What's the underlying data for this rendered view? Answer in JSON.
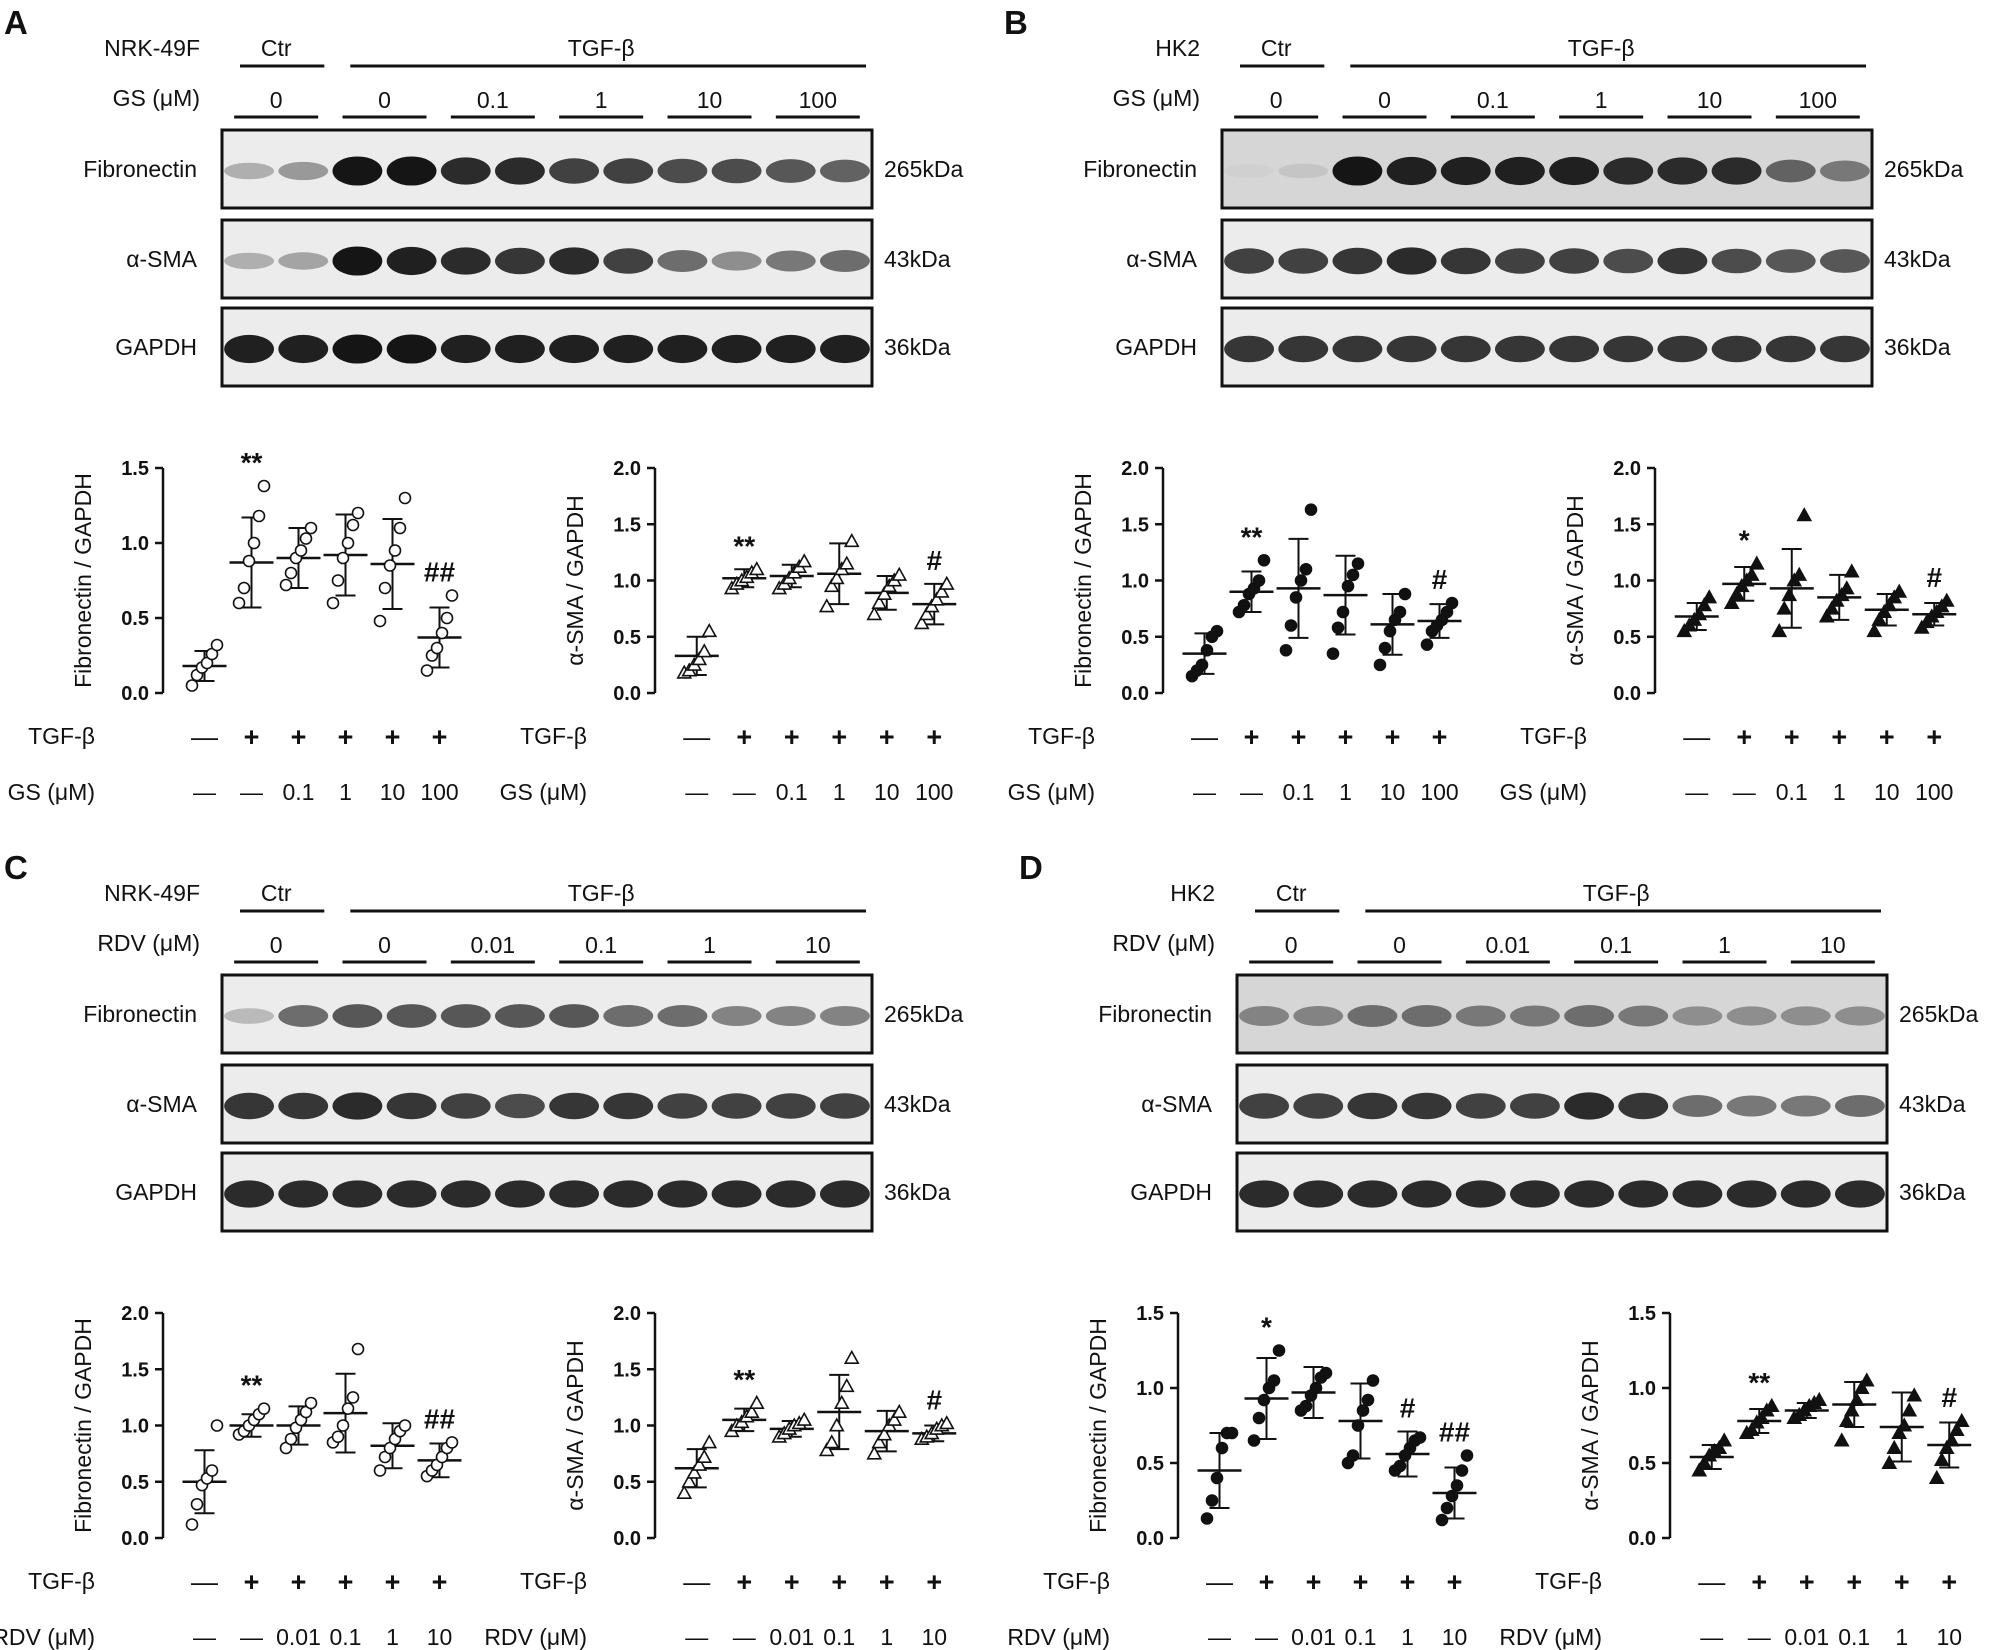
{
  "panels": [
    {
      "letter": "A",
      "cell": "NRK-49F",
      "drug": "GS (μM)",
      "ctr_label": "Ctr",
      "tgf_label": "TGF-β",
      "lanes": [
        "0",
        "0",
        "0.1",
        "1",
        "10",
        "100"
      ],
      "blots": [
        {
          "name": "Fibronectin",
          "kda": "265kDa"
        },
        {
          "name": "α-SMA",
          "kda": "43kDa"
        },
        {
          "name": "GAPDH",
          "kda": "36kDa"
        }
      ],
      "tgf_row": [
        "—",
        "+",
        "+",
        "+",
        "+",
        "+"
      ],
      "dose_row": [
        "—",
        "—",
        "0.1",
        "1",
        "10",
        "100"
      ],
      "markers": "open-circle|open-triangle"
    },
    {
      "letter": "B",
      "cell": "HK2",
      "drug": "GS (μM)",
      "ctr_label": "Ctr",
      "tgf_label": "TGF-β",
      "lanes": [
        "0",
        "0",
        "0.1",
        "1",
        "10",
        "100"
      ],
      "blots": [
        {
          "name": "Fibronectin",
          "kda": "265kDa"
        },
        {
          "name": "α-SMA",
          "kda": "43kDa"
        },
        {
          "name": "GAPDH",
          "kda": "36kDa"
        }
      ],
      "tgf_row": [
        "—",
        "+",
        "+",
        "+",
        "+",
        "+"
      ],
      "dose_row": [
        "—",
        "—",
        "0.1",
        "1",
        "10",
        "100"
      ],
      "markers": "filled-circle|filled-triangle"
    },
    {
      "letter": "C",
      "cell": "NRK-49F",
      "drug": "RDV (μM)",
      "ctr_label": "Ctr",
      "tgf_label": "TGF-β",
      "lanes": [
        "0",
        "0",
        "0.01",
        "0.1",
        "1",
        "10"
      ],
      "blots": [
        {
          "name": "Fibronectin",
          "kda": "265kDa"
        },
        {
          "name": "α-SMA",
          "kda": "43kDa"
        },
        {
          "name": "GAPDH",
          "kda": "36kDa"
        }
      ],
      "tgf_row": [
        "—",
        "+",
        "+",
        "+",
        "+",
        "+"
      ],
      "dose_row": [
        "—",
        "—",
        "0.01",
        "0.1",
        "1",
        "10"
      ],
      "markers": "open-circle|open-triangle"
    },
    {
      "letter": "D",
      "cell": "HK2",
      "drug": "RDV (μM)",
      "ctr_label": "Ctr",
      "tgf_label": "TGF-β",
      "lanes": [
        "0",
        "0",
        "0.01",
        "0.1",
        "1",
        "10"
      ],
      "blots": [
        {
          "name": "Fibronectin",
          "kda": "265kDa"
        },
        {
          "name": "α-SMA",
          "kda": "43kDa"
        },
        {
          "name": "GAPDH",
          "kda": "36kDa"
        }
      ],
      "tgf_row": [
        "—",
        "+",
        "+",
        "+",
        "+",
        "+"
      ],
      "dose_row": [
        "—",
        "—",
        "0.01",
        "0.1",
        "1",
        "10"
      ],
      "markers": "filled-circle|filled-triangle"
    }
  ],
  "band_intensity": [
    {
      "Fibronectin": [
        0.25,
        0.35,
        0.95,
        0.95,
        0.85,
        0.85,
        0.75,
        0.75,
        0.7,
        0.7,
        0.65,
        0.6
      ],
      "α-SMA": [
        0.25,
        0.3,
        0.95,
        0.9,
        0.85,
        0.8,
        0.85,
        0.75,
        0.55,
        0.4,
        0.5,
        0.55
      ],
      "GAPDH": [
        0.9,
        0.9,
        0.95,
        0.95,
        0.9,
        0.9,
        0.9,
        0.9,
        0.9,
        0.9,
        0.9,
        0.9
      ]
    },
    {
      "Fibronectin": [
        0.1,
        0.15,
        0.95,
        0.9,
        0.9,
        0.9,
        0.9,
        0.85,
        0.85,
        0.85,
        0.6,
        0.5
      ],
      "α-SMA": [
        0.75,
        0.75,
        0.8,
        0.85,
        0.8,
        0.75,
        0.75,
        0.7,
        0.8,
        0.7,
        0.65,
        0.65
      ],
      "GAPDH": [
        0.8,
        0.8,
        0.8,
        0.8,
        0.8,
        0.8,
        0.8,
        0.8,
        0.8,
        0.8,
        0.8,
        0.8
      ]
    },
    {
      "Fibronectin": [
        0.2,
        0.55,
        0.65,
        0.65,
        0.65,
        0.65,
        0.65,
        0.55,
        0.55,
        0.45,
        0.45,
        0.45
      ],
      "α-SMA": [
        0.8,
        0.8,
        0.85,
        0.8,
        0.75,
        0.7,
        0.8,
        0.8,
        0.75,
        0.75,
        0.75,
        0.75
      ],
      "GAPDH": [
        0.85,
        0.85,
        0.85,
        0.85,
        0.85,
        0.85,
        0.85,
        0.85,
        0.85,
        0.85,
        0.85,
        0.85
      ]
    },
    {
      "Fibronectin": [
        0.45,
        0.45,
        0.55,
        0.55,
        0.5,
        0.5,
        0.55,
        0.5,
        0.4,
        0.4,
        0.4,
        0.4
      ],
      "α-SMA": [
        0.75,
        0.75,
        0.8,
        0.8,
        0.75,
        0.75,
        0.85,
        0.8,
        0.55,
        0.5,
        0.5,
        0.55
      ],
      "GAPDH": [
        0.85,
        0.85,
        0.85,
        0.85,
        0.85,
        0.85,
        0.85,
        0.85,
        0.85,
        0.85,
        0.85,
        0.85
      ]
    }
  ],
  "chart_data": [
    {
      "type": "scatter",
      "panel": "A",
      "ylabel": "Fibronectin / GAPDH",
      "ylim": [
        0,
        1.5
      ],
      "yticks": [
        0.0,
        0.5,
        1.0,
        1.5
      ],
      "means": [
        0.18,
        0.87,
        0.9,
        0.92,
        0.86,
        0.37
      ],
      "sd": [
        0.1,
        0.3,
        0.2,
        0.27,
        0.3,
        0.2
      ],
      "points": [
        [
          0.05,
          0.12,
          0.17,
          0.2,
          0.26,
          0.32
        ],
        [
          0.6,
          0.7,
          0.88,
          1.0,
          1.18,
          1.38
        ],
        [
          0.72,
          0.8,
          0.9,
          0.95,
          1.03,
          1.1
        ],
        [
          0.6,
          0.75,
          0.9,
          1.0,
          1.12,
          1.2
        ],
        [
          0.48,
          0.7,
          0.85,
          0.95,
          1.1,
          1.3
        ],
        [
          0.15,
          0.25,
          0.3,
          0.4,
          0.5,
          0.65
        ]
      ],
      "annotations": [
        "",
        "**",
        "",
        "",
        "",
        "##"
      ]
    },
    {
      "type": "scatter",
      "panel": "A",
      "ylabel": "α-SMA / GAPDH",
      "ylim": [
        0,
        2.0
      ],
      "yticks": [
        0.0,
        0.5,
        1.0,
        1.5,
        2.0
      ],
      "means": [
        0.33,
        1.02,
        1.04,
        1.06,
        0.89,
        0.79
      ],
      "sd": [
        0.17,
        0.08,
        0.1,
        0.27,
        0.15,
        0.18
      ],
      "points": [
        [
          0.18,
          0.2,
          0.25,
          0.3,
          0.37,
          0.55
        ],
        [
          0.93,
          0.97,
          1.0,
          1.03,
          1.07,
          1.1
        ],
        [
          0.93,
          0.97,
          1.02,
          1.07,
          1.12,
          1.17
        ],
        [
          0.77,
          0.95,
          1.02,
          1.1,
          1.15,
          1.35
        ],
        [
          0.7,
          0.8,
          0.88,
          0.95,
          1.0,
          1.05
        ],
        [
          0.62,
          0.7,
          0.77,
          0.83,
          0.9,
          0.97
        ]
      ],
      "annotations": [
        "",
        "**",
        "",
        "",
        "",
        "#"
      ]
    },
    {
      "type": "scatter",
      "panel": "B",
      "ylabel": "Fibronectin / GAPDH",
      "ylim": [
        0,
        2.0
      ],
      "yticks": [
        0.0,
        0.5,
        1.0,
        1.5,
        2.0
      ],
      "means": [
        0.35,
        0.9,
        0.93,
        0.87,
        0.61,
        0.64
      ],
      "sd": [
        0.18,
        0.18,
        0.44,
        0.35,
        0.27,
        0.15
      ],
      "points": [
        [
          0.15,
          0.2,
          0.25,
          0.38,
          0.5,
          0.55
        ],
        [
          0.72,
          0.78,
          0.88,
          0.93,
          1.0,
          1.18
        ],
        [
          0.38,
          0.6,
          0.85,
          1.0,
          1.1,
          1.63
        ],
        [
          0.35,
          0.58,
          0.72,
          0.95,
          1.05,
          1.15
        ],
        [
          0.25,
          0.4,
          0.55,
          0.65,
          0.72,
          0.88
        ],
        [
          0.43,
          0.55,
          0.6,
          0.65,
          0.72,
          0.8
        ]
      ],
      "annotations": [
        "",
        "**",
        "",
        "",
        "",
        "#"
      ]
    },
    {
      "type": "scatter",
      "panel": "B",
      "ylabel": "α-SMA / GAPDH",
      "ylim": [
        0,
        2.0
      ],
      "yticks": [
        0.0,
        0.5,
        1.0,
        1.5,
        2.0
      ],
      "means": [
        0.68,
        0.97,
        0.93,
        0.85,
        0.74,
        0.7
      ],
      "sd": [
        0.12,
        0.15,
        0.35,
        0.2,
        0.14,
        0.1
      ],
      "points": [
        [
          0.55,
          0.6,
          0.65,
          0.7,
          0.78,
          0.85
        ],
        [
          0.8,
          0.88,
          0.95,
          1.0,
          1.05,
          1.15
        ],
        [
          0.55,
          0.75,
          0.87,
          1.0,
          1.05,
          1.58
        ],
        [
          0.68,
          0.75,
          0.82,
          0.87,
          0.93,
          1.08
        ],
        [
          0.55,
          0.65,
          0.72,
          0.78,
          0.85,
          0.9
        ],
        [
          0.58,
          0.63,
          0.68,
          0.72,
          0.77,
          0.82
        ]
      ],
      "annotations": [
        "",
        "*",
        "",
        "",
        "",
        "#"
      ]
    },
    {
      "type": "scatter",
      "panel": "C",
      "ylabel": "Fibronectin / GAPDH",
      "ylim": [
        0,
        2.0
      ],
      "yticks": [
        0.0,
        0.5,
        1.0,
        1.5,
        2.0
      ],
      "means": [
        0.5,
        1.0,
        1.0,
        1.11,
        0.82,
        0.69
      ],
      "sd": [
        0.28,
        0.1,
        0.17,
        0.35,
        0.2,
        0.15
      ],
      "points": [
        [
          0.12,
          0.3,
          0.47,
          0.53,
          0.6,
          1.0
        ],
        [
          0.92,
          0.95,
          1.0,
          1.05,
          1.1,
          1.15
        ],
        [
          0.8,
          0.88,
          0.98,
          1.05,
          1.12,
          1.2
        ],
        [
          0.85,
          0.9,
          1.0,
          1.15,
          1.25,
          1.68
        ],
        [
          0.6,
          0.72,
          0.8,
          0.88,
          0.95,
          1.0
        ],
        [
          0.55,
          0.6,
          0.65,
          0.72,
          0.8,
          0.85
        ]
      ],
      "annotations": [
        "",
        "**",
        "",
        "",
        "",
        "##"
      ]
    },
    {
      "type": "scatter",
      "panel": "C",
      "ylabel": "α-SMA / GAPDH",
      "ylim": [
        0,
        2.0
      ],
      "yticks": [
        0.0,
        0.5,
        1.0,
        1.5,
        2.0
      ],
      "means": [
        0.62,
        1.05,
        0.97,
        1.12,
        0.95,
        0.93
      ],
      "sd": [
        0.17,
        0.1,
        0.07,
        0.33,
        0.18,
        0.07
      ],
      "points": [
        [
          0.4,
          0.5,
          0.58,
          0.65,
          0.72,
          0.85
        ],
        [
          0.95,
          1.0,
          1.03,
          1.08,
          1.12,
          1.2
        ],
        [
          0.9,
          0.93,
          0.97,
          1.0,
          1.02,
          1.05
        ],
        [
          0.78,
          0.85,
          1.0,
          1.2,
          1.35,
          1.6
        ],
        [
          0.75,
          0.85,
          0.92,
          1.0,
          1.05,
          1.12
        ],
        [
          0.88,
          0.9,
          0.93,
          0.97,
          1.0,
          1.02
        ]
      ],
      "annotations": [
        "",
        "**",
        "",
        "",
        "",
        "#"
      ]
    },
    {
      "type": "scatter",
      "panel": "D",
      "ylabel": "Fibronectin / GAPDH",
      "ylim": [
        0,
        1.5
      ],
      "yticks": [
        0.0,
        0.5,
        1.0,
        1.5
      ],
      "means": [
        0.45,
        0.93,
        0.97,
        0.78,
        0.56,
        0.3
      ],
      "sd": [
        0.25,
        0.27,
        0.17,
        0.25,
        0.15,
        0.17
      ],
      "points": [
        [
          0.13,
          0.25,
          0.4,
          0.6,
          0.7,
          0.7
        ],
        [
          0.65,
          0.8,
          0.92,
          1.0,
          1.05,
          1.25
        ],
        [
          0.85,
          0.88,
          0.95,
          1.0,
          1.07,
          1.1
        ],
        [
          0.5,
          0.55,
          0.75,
          0.85,
          0.92,
          1.05
        ],
        [
          0.45,
          0.48,
          0.55,
          0.6,
          0.65,
          0.67
        ],
        [
          0.12,
          0.2,
          0.28,
          0.35,
          0.45,
          0.55
        ]
      ],
      "annotations": [
        "",
        "*",
        "",
        "",
        "#",
        "##"
      ]
    },
    {
      "type": "scatter",
      "panel": "D",
      "ylabel": "α-SMA / GAPDH",
      "ylim": [
        0,
        1.5
      ],
      "yticks": [
        0.0,
        0.5,
        1.0,
        1.5
      ],
      "means": [
        0.54,
        0.78,
        0.85,
        0.89,
        0.74,
        0.62
      ],
      "sd": [
        0.08,
        0.08,
        0.05,
        0.15,
        0.23,
        0.15
      ],
      "points": [
        [
          0.45,
          0.5,
          0.55,
          0.58,
          0.6,
          0.65
        ],
        [
          0.7,
          0.72,
          0.77,
          0.8,
          0.85,
          0.88
        ],
        [
          0.8,
          0.82,
          0.85,
          0.88,
          0.9,
          0.92
        ],
        [
          0.65,
          0.78,
          0.85,
          0.92,
          1.0,
          1.05
        ],
        [
          0.5,
          0.6,
          0.7,
          0.75,
          0.85,
          0.95
        ],
        [
          0.4,
          0.52,
          0.6,
          0.65,
          0.72,
          0.78
        ]
      ],
      "annotations": [
        "",
        "**",
        "",
        "",
        "",
        "#"
      ]
    }
  ]
}
